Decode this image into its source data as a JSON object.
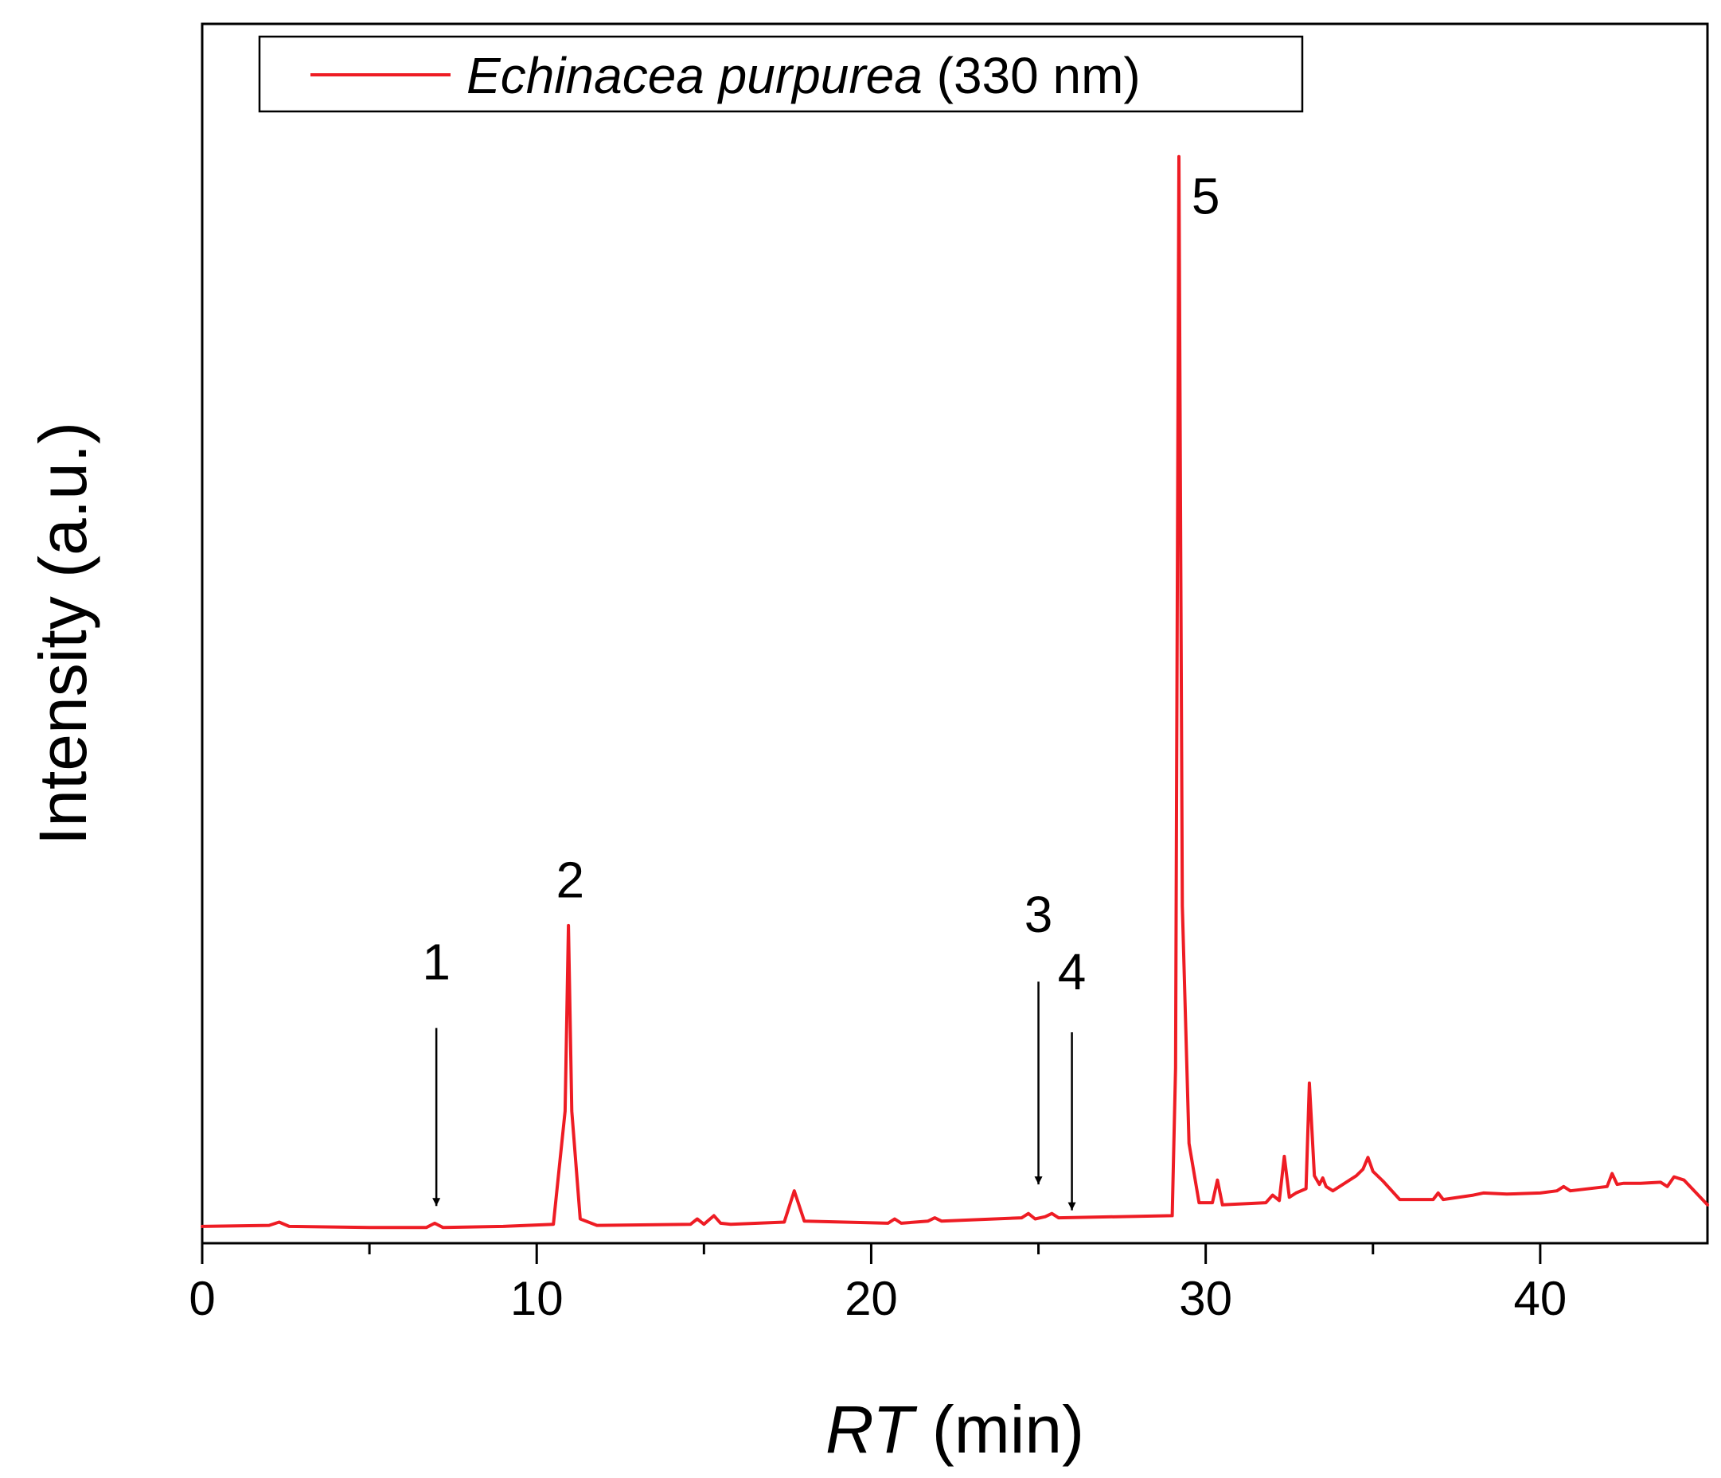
{
  "chart_data": {
    "type": "line",
    "xlabel": {
      "italic": "RT",
      "rest": " (min)"
    },
    "ylabel": "Intensity (a.u.)",
    "xlim": [
      0,
      45
    ],
    "ylim": [
      0,
      100
    ],
    "x_ticks": [
      0,
      10,
      20,
      30,
      40
    ],
    "x_tick_labels": [
      "0",
      "10",
      "20",
      "30",
      "40"
    ],
    "x_minor_ticks": [
      5,
      15,
      25,
      35
    ],
    "y_ticks": "none",
    "grid": false,
    "legend": {
      "position": "top-left",
      "entries": [
        {
          "italic": "Echinacea purpurea",
          "rest": " (330 nm)"
        }
      ]
    },
    "series": [
      {
        "name": "Echinacea purpurea (330 nm)",
        "color": "#ee1c24",
        "x": [
          0,
          2,
          2.3,
          2.6,
          5,
          6.7,
          6.95,
          7.2,
          9,
          10.5,
          10.85,
          10.95,
          11.05,
          11.3,
          11.8,
          14.6,
          14.8,
          15.0,
          15.3,
          15.5,
          15.8,
          17.4,
          17.7,
          18.0,
          20.5,
          20.7,
          20.9,
          21.7,
          21.9,
          22.1,
          24.5,
          24.7,
          24.9,
          25.2,
          25.4,
          25.6,
          29.0,
          29.1,
          29.2,
          29.3,
          29.5,
          29.8,
          30.2,
          30.35,
          30.5,
          31.8,
          32.0,
          32.2,
          32.35,
          32.5,
          32.7,
          33.0,
          33.1,
          33.25,
          33.4,
          33.5,
          33.6,
          33.8,
          34.5,
          34.7,
          34.85,
          35.0,
          35.3,
          35.8,
          36.8,
          36.95,
          37.1,
          38.0,
          38.3,
          39.0,
          40.0,
          40.5,
          40.7,
          40.9,
          42.0,
          42.15,
          42.3,
          42.5,
          43.0,
          43.6,
          43.8,
          44.0,
          44.3,
          45.0
        ],
        "y": [
          0.3,
          0.4,
          0.7,
          0.3,
          0.2,
          0.2,
          0.6,
          0.2,
          0.3,
          0.5,
          11.0,
          28.2,
          11.0,
          1.0,
          0.4,
          0.5,
          1.0,
          0.5,
          1.3,
          0.6,
          0.5,
          0.7,
          3.6,
          0.8,
          0.6,
          1.0,
          0.6,
          0.8,
          1.1,
          0.8,
          1.1,
          1.5,
          1.0,
          1.2,
          1.5,
          1.1,
          1.3,
          15.0,
          99.5,
          30.0,
          8.0,
          2.5,
          2.5,
          4.6,
          2.3,
          2.5,
          3.2,
          2.7,
          6.8,
          3.0,
          3.4,
          3.8,
          13.6,
          5.0,
          4.2,
          4.8,
          4.0,
          3.6,
          5.0,
          5.6,
          6.7,
          5.4,
          4.5,
          2.8,
          2.8,
          3.4,
          2.8,
          3.2,
          3.4,
          3.3,
          3.4,
          3.6,
          4.0,
          3.6,
          4.0,
          5.2,
          4.2,
          4.3,
          4.3,
          4.4,
          4.0,
          4.9,
          4.6,
          2.3
        ]
      }
    ],
    "peak_labels": [
      {
        "label": "1",
        "x": 7.0,
        "style": "arrow",
        "arrow_from_y": 18.7,
        "arrow_to_y": 2.2,
        "label_y": 23.2
      },
      {
        "label": "2",
        "x": 11.0,
        "style": "text",
        "label_y": 30.8
      },
      {
        "label": "3",
        "x": 25.0,
        "style": "arrow",
        "arrow_from_y": 23.0,
        "arrow_to_y": 4.2,
        "label_y": 27.6
      },
      {
        "label": "4",
        "x": 26.0,
        "style": "arrow",
        "arrow_from_y": 18.3,
        "arrow_to_y": 1.8,
        "label_y": 22.3
      },
      {
        "label": "5",
        "x": 30.0,
        "style": "text",
        "label_y": 94.2
      }
    ]
  }
}
